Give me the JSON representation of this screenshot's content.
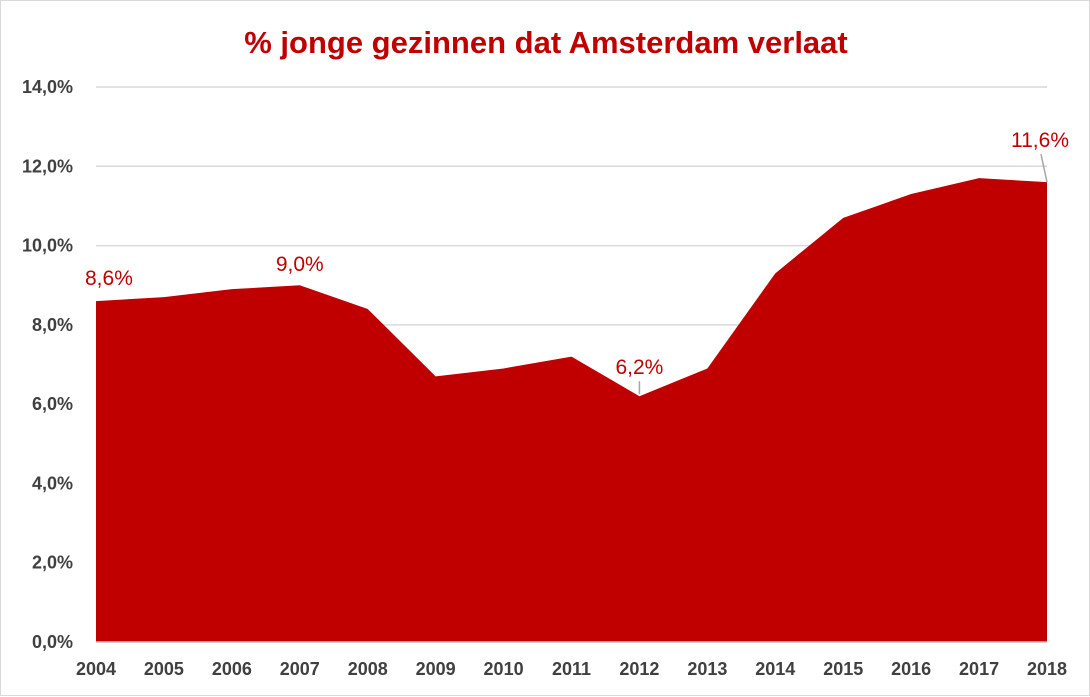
{
  "chart_data": {
    "type": "area",
    "title": "% jonge gezinnen dat Amsterdam verlaat",
    "xlabel": "",
    "ylabel": "",
    "categories": [
      "2004",
      "2005",
      "2006",
      "2007",
      "2008",
      "2009",
      "2010",
      "2011",
      "2012",
      "2013",
      "2014",
      "2015",
      "2016",
      "2017",
      "2018"
    ],
    "series": [
      {
        "values": [
          8.6,
          8.7,
          8.9,
          9.0,
          8.4,
          6.7,
          6.9,
          7.2,
          6.2,
          6.9,
          9.3,
          10.7,
          11.3,
          11.7,
          11.6
        ]
      }
    ],
    "ylim": [
      0,
      14
    ],
    "y_ticks": [
      0,
      2,
      4,
      6,
      8,
      10,
      12,
      14
    ],
    "y_tick_labels": [
      "0,0%",
      "2,0%",
      "4,0%",
      "6,0%",
      "8,0%",
      "10,0%",
      "12,0%",
      "14,0%"
    ],
    "data_labels": [
      {
        "category": "2004",
        "text": "8,6%"
      },
      {
        "category": "2007",
        "text": "9,0%"
      },
      {
        "category": "2012",
        "text": "6,2%"
      },
      {
        "category": "2018",
        "text": "11,6%"
      }
    ],
    "grid": true,
    "legend": "none",
    "colors": {
      "fill": "#C00000",
      "title": "#C00000",
      "labels": "#C00000",
      "ticks": "#404040",
      "grid": "#D9D9D9"
    }
  }
}
